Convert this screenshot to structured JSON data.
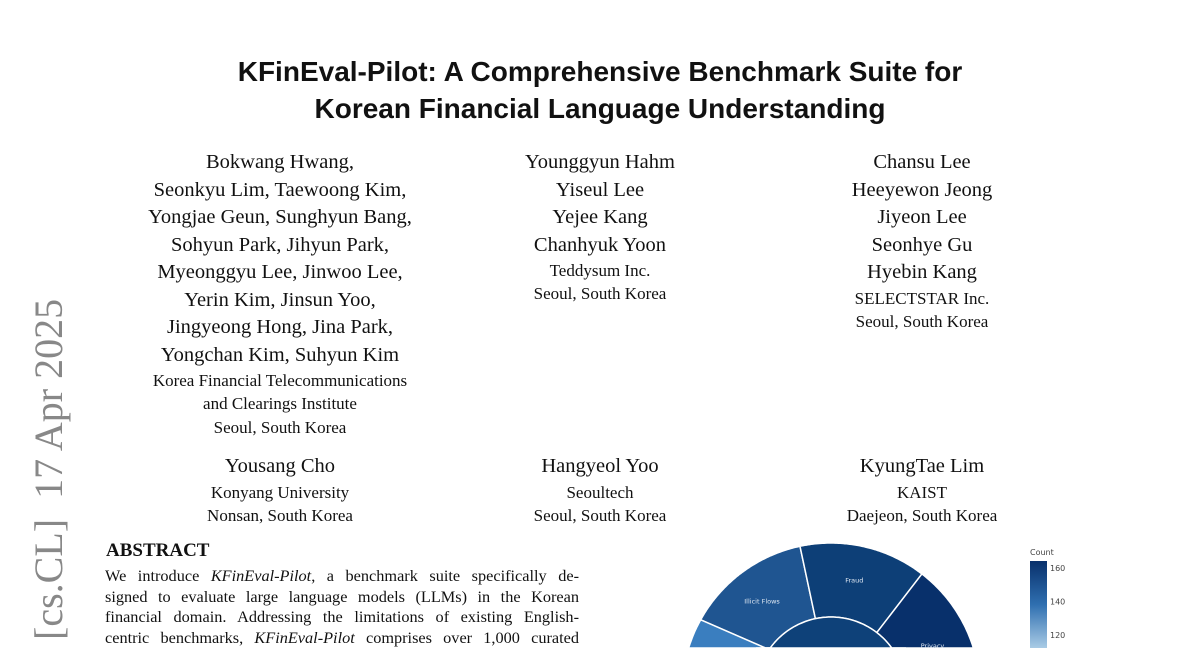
{
  "title_lines": [
    "KFinEval-Pilot: A Comprehensive Benchmark Suite for",
    "Korean Financial Language Understanding"
  ],
  "author_groups": [
    {
      "names": [
        "Bokwang Hwang,",
        "Seonkyu Lim, Taewoong Kim,",
        "Yongjae Geun, Sunghyun Bang,",
        "Sohyun Park, Jihyun Park,",
        "Myeonggyu Lee, Jinwoo Lee,",
        "Yerin Kim, Jinsun Yoo,",
        "Jingyeong Hong, Jina Park,",
        "Yongchan Kim, Suhyun Kim"
      ],
      "affiliation": [
        "Korea Financial Telecommunications",
        "and Clearings Institute",
        "Seoul, South Korea"
      ]
    },
    {
      "names": [
        "Younggyun Hahm",
        "Yiseul Lee",
        "Yejee Kang",
        "Chanhyuk Yoon"
      ],
      "affiliation": [
        "Teddysum Inc.",
        "Seoul, South Korea"
      ]
    },
    {
      "names": [
        "Chansu Lee",
        "Heeyewon Jeong",
        "Jiyeon Lee",
        "Seonhye Gu",
        "Hyebin Kang"
      ],
      "affiliation": [
        "SELECTSTAR Inc.",
        "Seoul, South Korea"
      ]
    },
    {
      "names": [
        "Yousang Cho"
      ],
      "affiliation": [
        "Konyang University",
        "Nonsan, South Korea"
      ]
    },
    {
      "names": [
        "Hangyeol Yoo"
      ],
      "affiliation": [
        "Seoultech",
        "Seoul, South Korea"
      ]
    },
    {
      "names": [
        "KyungTae Lim"
      ],
      "affiliation": [
        "KAIST",
        "Daejeon, South Korea"
      ]
    }
  ],
  "arxiv_stamp": "[cs.CL]  17 Apr 2025",
  "abstract": {
    "heading": "ABSTRACT",
    "lines": [
      [
        "We introduce ",
        "KFinEval-Pilot",
        ", a benchmark suite specifically de-"
      ],
      [
        "signed to evaluate large language models (LLMs) in the Korean",
        "",
        ""
      ],
      [
        "financial domain. Addressing the limitations of existing English-",
        "",
        ""
      ],
      [
        "centric benchmarks, ",
        "KFinEval-Pilot",
        " comprises over 1,000 curated"
      ]
    ]
  },
  "chart_data": {
    "type": "sunburst",
    "colorbar_title": "Count",
    "colorbar_ticks": [
      120,
      140,
      160
    ],
    "segments": [
      {
        "label": "Illicit Flows",
        "color": "#1f5591"
      },
      {
        "label": "Fraud",
        "color": "#0d3f77"
      },
      {
        "label": "Privacy",
        "color": "#08306b"
      },
      {
        "label": "",
        "color": "#3a7ebf"
      }
    ],
    "center_color": "#0e4179"
  }
}
